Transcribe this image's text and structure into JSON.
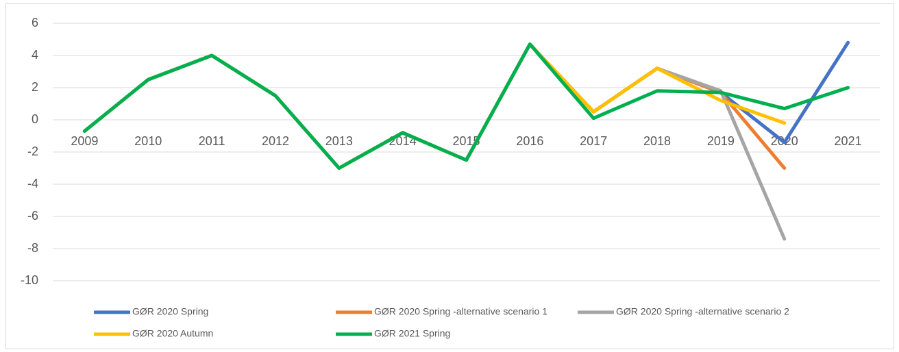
{
  "chart_data": {
    "type": "line",
    "categories": [
      "2009",
      "2010",
      "2011",
      "2012",
      "2013",
      "2014",
      "2015",
      "2016",
      "2017",
      "2018",
      "2019",
      "2020",
      "2021"
    ],
    "series": [
      {
        "name": "GØR 2020 Spring",
        "color": "#4472c4",
        "values": [
          -0.7,
          2.5,
          4.0,
          1.5,
          -3.0,
          -0.8,
          -2.5,
          4.7,
          0.5,
          3.2,
          1.7,
          -1.4,
          4.8
        ]
      },
      {
        "name": "GØR 2020 Spring -alternative scenario 1",
        "color": "#ed7d31",
        "values": [
          -0.7,
          2.5,
          4.0,
          1.5,
          -3.0,
          -0.8,
          -2.5,
          4.7,
          0.5,
          3.2,
          1.7,
          -3.0,
          null
        ]
      },
      {
        "name": "GØR 2020 Spring -alternative scenario 2",
        "color": "#a5a5a5",
        "values": [
          -0.7,
          2.5,
          4.0,
          1.5,
          -3.0,
          -0.8,
          -2.5,
          4.7,
          0.5,
          3.2,
          1.8,
          -7.4,
          null
        ]
      },
      {
        "name": "GØR 2020 Autumn",
        "color": "#ffc000",
        "values": [
          -0.7,
          2.5,
          4.0,
          1.5,
          -3.0,
          -0.8,
          -2.5,
          4.7,
          0.5,
          3.2,
          1.2,
          -0.2,
          null
        ]
      },
      {
        "name": "GØR 2021 Spring",
        "color": "#00b050",
        "values": [
          -0.7,
          2.5,
          4.0,
          1.5,
          -3.0,
          -0.8,
          -2.5,
          4.7,
          0.1,
          1.8,
          1.7,
          0.7,
          2.0
        ]
      }
    ],
    "ylim": [
      -10,
      6
    ],
    "yticks": [
      -10,
      -8,
      -6,
      -4,
      -2,
      0,
      2,
      4,
      6
    ],
    "grid": true,
    "legend": "bottom"
  }
}
